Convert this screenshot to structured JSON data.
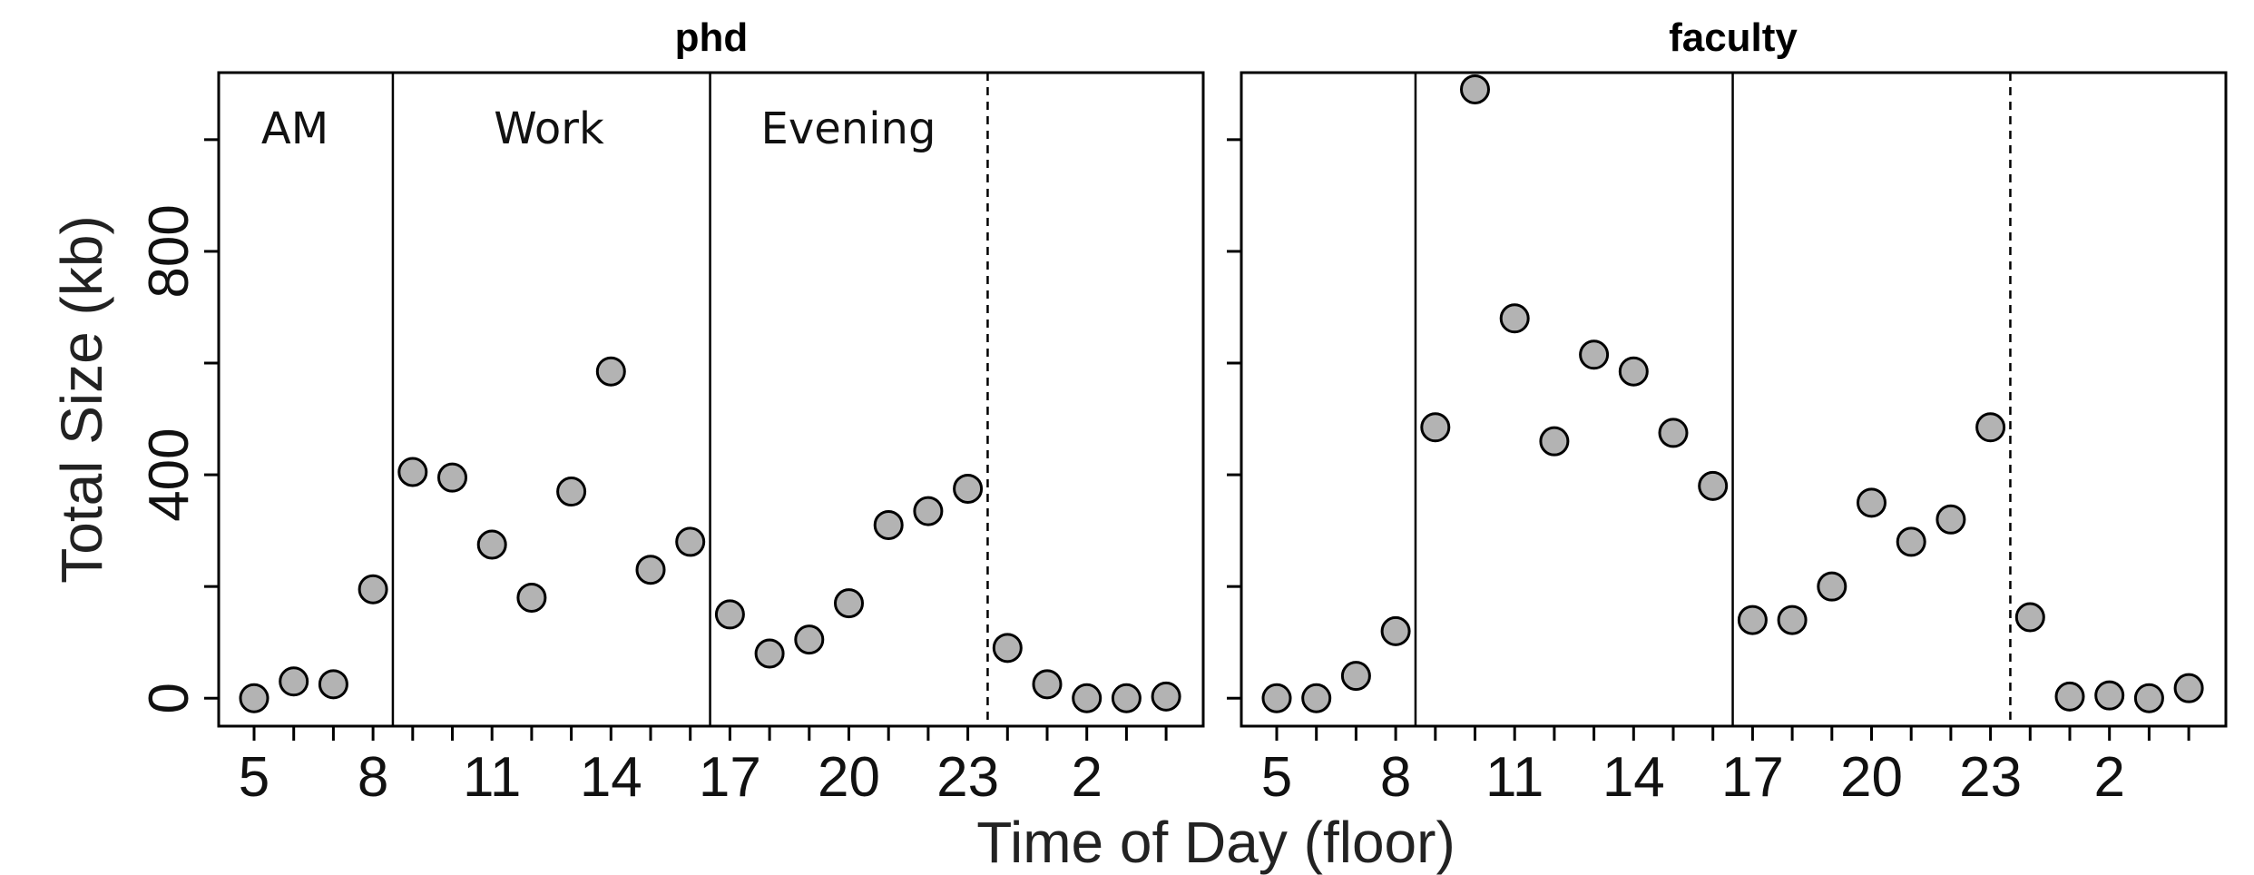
{
  "chart_data": {
    "type": "scatter",
    "xlabel": "Time of Day (floor)",
    "ylabel": "Total Size (kb)",
    "ylim": [
      -50,
      1120
    ],
    "y_ticks": [
      0,
      400,
      800
    ],
    "y_minor_ticks": [
      200,
      600,
      1000
    ],
    "x_categories": [
      5,
      6,
      7,
      8,
      9,
      10,
      11,
      12,
      13,
      14,
      15,
      16,
      17,
      18,
      19,
      20,
      21,
      22,
      23,
      0,
      1,
      2,
      3,
      4
    ],
    "x_tick_labels": [
      "5",
      "8",
      "11",
      "14",
      "17",
      "20",
      "23",
      "2"
    ],
    "region_labels": [
      "AM",
      "Work",
      "Evening"
    ],
    "panels": [
      {
        "title": "phd",
        "values": [
          0,
          30,
          25,
          195,
          405,
          395,
          275,
          180,
          370,
          585,
          230,
          280,
          150,
          80,
          105,
          170,
          310,
          335,
          375,
          90,
          25,
          0,
          0,
          3
        ]
      },
      {
        "title": "faculty",
        "values": [
          0,
          0,
          40,
          120,
          485,
          1090,
          680,
          460,
          615,
          585,
          475,
          380,
          140,
          140,
          200,
          350,
          280,
          320,
          485,
          145,
          3,
          5,
          0,
          18
        ]
      }
    ]
  }
}
